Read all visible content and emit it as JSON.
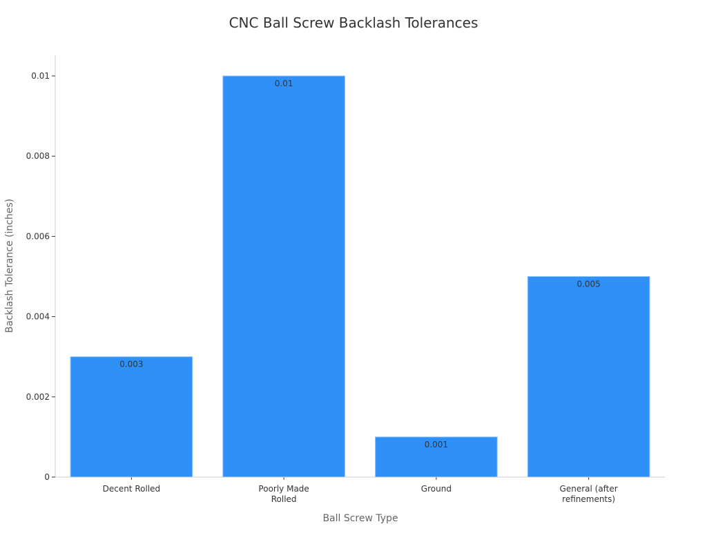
{
  "chart_data": {
    "type": "bar",
    "title": "CNC Ball Screw Backlash Tolerances",
    "xlabel": "Ball Screw Type",
    "ylabel": "Backlash Tolerance (inches)",
    "categories": [
      [
        "Decent Rolled"
      ],
      [
        "Poorly Made",
        "Rolled"
      ],
      [
        "Ground"
      ],
      [
        "General (after",
        "refinements)"
      ]
    ],
    "values": [
      0.003,
      0.01,
      0.001,
      0.005
    ],
    "data_labels": [
      "0.003",
      "0.01",
      "0.001",
      "0.005"
    ],
    "ylim": [
      0,
      0.0105
    ],
    "yticks": [
      0,
      0.002,
      0.004,
      0.006,
      0.008,
      0.01
    ],
    "ytick_labels": [
      "0",
      "0.002",
      "0.004",
      "0.006",
      "0.008",
      "0.01"
    ],
    "grid": false,
    "colors": {
      "bar": "#2f91f8",
      "bar_edge": "#8cc3fb",
      "axis": "#cccccc",
      "text": "#333333",
      "label": "#666666"
    }
  }
}
